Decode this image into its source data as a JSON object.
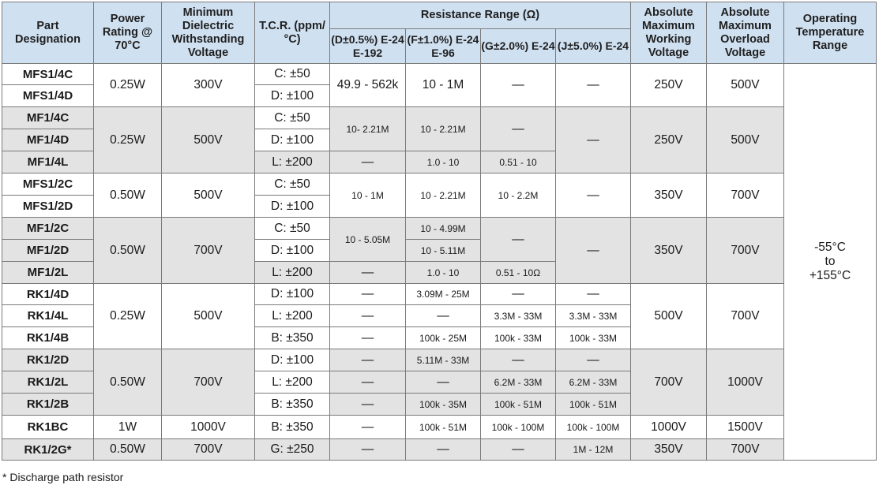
{
  "headers": {
    "part": "Part Designation",
    "power": "Power Rating @ 70°C",
    "dielectric": "Minimum Dielectric Withstanding Voltage",
    "tcr": "T.C.R. (ppm/°C)",
    "resistance": "Resistance Range (Ω)",
    "d": "(D±0.5%) E-24 E-192",
    "f": "(F±1.0%) E-24 E-96",
    "g": "(G±2.0%) E-24",
    "j": "(J±5.0%) E-24",
    "working": "Absolute Maximum Working Voltage",
    "overload": "Absolute Maximum Overload Voltage",
    "temp": "Operating Temperature Range"
  },
  "rows": [
    {
      "part": "MFS1/4C",
      "power": "0.25W",
      "diel": "300V",
      "tcr": "C: ±50",
      "d": "49.9 - 562k",
      "f": "10 - 1M",
      "g": "—",
      "j": "—",
      "work": "250V",
      "over": "500V"
    },
    {
      "part": "MFS1/4D",
      "tcr": "D: ±100"
    },
    {
      "part": "MF1/4C",
      "power": "0.25W",
      "diel": "500V",
      "tcr": "C: ±50",
      "d": "10- 2.21M",
      "f": "10 - 2.21M",
      "g": "—",
      "j": "—",
      "work": "250V",
      "over": "500V"
    },
    {
      "part": "MF1/4D",
      "tcr": "D: ±100"
    },
    {
      "part": "MF1/4L",
      "tcr": "L: ±200",
      "d": "—",
      "f": "1.0 - 10",
      "g": "0.51 - 10"
    },
    {
      "part": "MFS1/2C",
      "power": "0.50W",
      "diel": "500V",
      "tcr": "C: ±50",
      "d": "10 - 1M",
      "f": "10 - 2.21M",
      "g": "10 - 2.2M",
      "j": "—",
      "work": "350V",
      "over": "700V"
    },
    {
      "part": "MFS1/2D",
      "tcr": "D: ±100"
    },
    {
      "part": "MF1/2C",
      "power": "0.50W",
      "diel": "700V",
      "tcr": "C: ±50",
      "d": "10 - 5.05M",
      "f": "10 - 4.99M",
      "g": "—",
      "j": "—",
      "work": "350V",
      "over": "700V"
    },
    {
      "part": "MF1/2D",
      "tcr": "D: ±100",
      "f": "10 - 5.11M"
    },
    {
      "part": "MF1/2L",
      "tcr": "L: ±200",
      "d": "—",
      "f": "1.0 - 10",
      "g": "0.51 - 10Ω"
    },
    {
      "part": "RK1/4D",
      "power": "0.25W",
      "diel": "500V",
      "tcr": "D: ±100",
      "d": "—",
      "f": "3.09M - 25M",
      "g": "—",
      "j": "—",
      "work": "500V",
      "over": "700V"
    },
    {
      "part": "RK1/4L",
      "tcr": "L: ±200",
      "d": "—",
      "f": "—",
      "g": "3.3M - 33M",
      "j": "3.3M - 33M"
    },
    {
      "part": "RK1/4B",
      "tcr": "B: ±350",
      "d": "—",
      "f": "100k - 25M",
      "g": "100k - 33M",
      "j": "100k - 33M"
    },
    {
      "part": "RK1/2D",
      "power": "0.50W",
      "diel": "700V",
      "tcr": "D: ±100",
      "d": "—",
      "f": "5.11M - 33M",
      "g": "—",
      "j": "—",
      "work": "700V",
      "over": "1000V"
    },
    {
      "part": "RK1/2L",
      "tcr": "L: ±200",
      "d": "—",
      "f": "—",
      "g": "6.2M - 33M",
      "j": "6.2M - 33M"
    },
    {
      "part": "RK1/2B",
      "tcr": "B: ±350",
      "d": "—",
      "f": "100k - 35M",
      "g": "100k - 51M",
      "j": "100k - 51M"
    },
    {
      "part": "RK1BC",
      "power": "1W",
      "diel": "1000V",
      "tcr": "B: ±350",
      "d": "—",
      "f": "100k - 51M",
      "g": "100k - 100M",
      "j": "100k - 100M",
      "work": "1000V",
      "over": "1500V"
    },
    {
      "part": "RK1/2G*",
      "power": "0.50W",
      "diel": "700V",
      "tcr": "G: ±250",
      "d": "—",
      "f": "—",
      "g": "—",
      "j": "1M - 12M",
      "work": "350V",
      "over": "700V"
    }
  ],
  "temperature": {
    "line1": "-55°C",
    "line2": "to",
    "line3": "+155°C"
  },
  "footnote": "* Discharge path resistor"
}
